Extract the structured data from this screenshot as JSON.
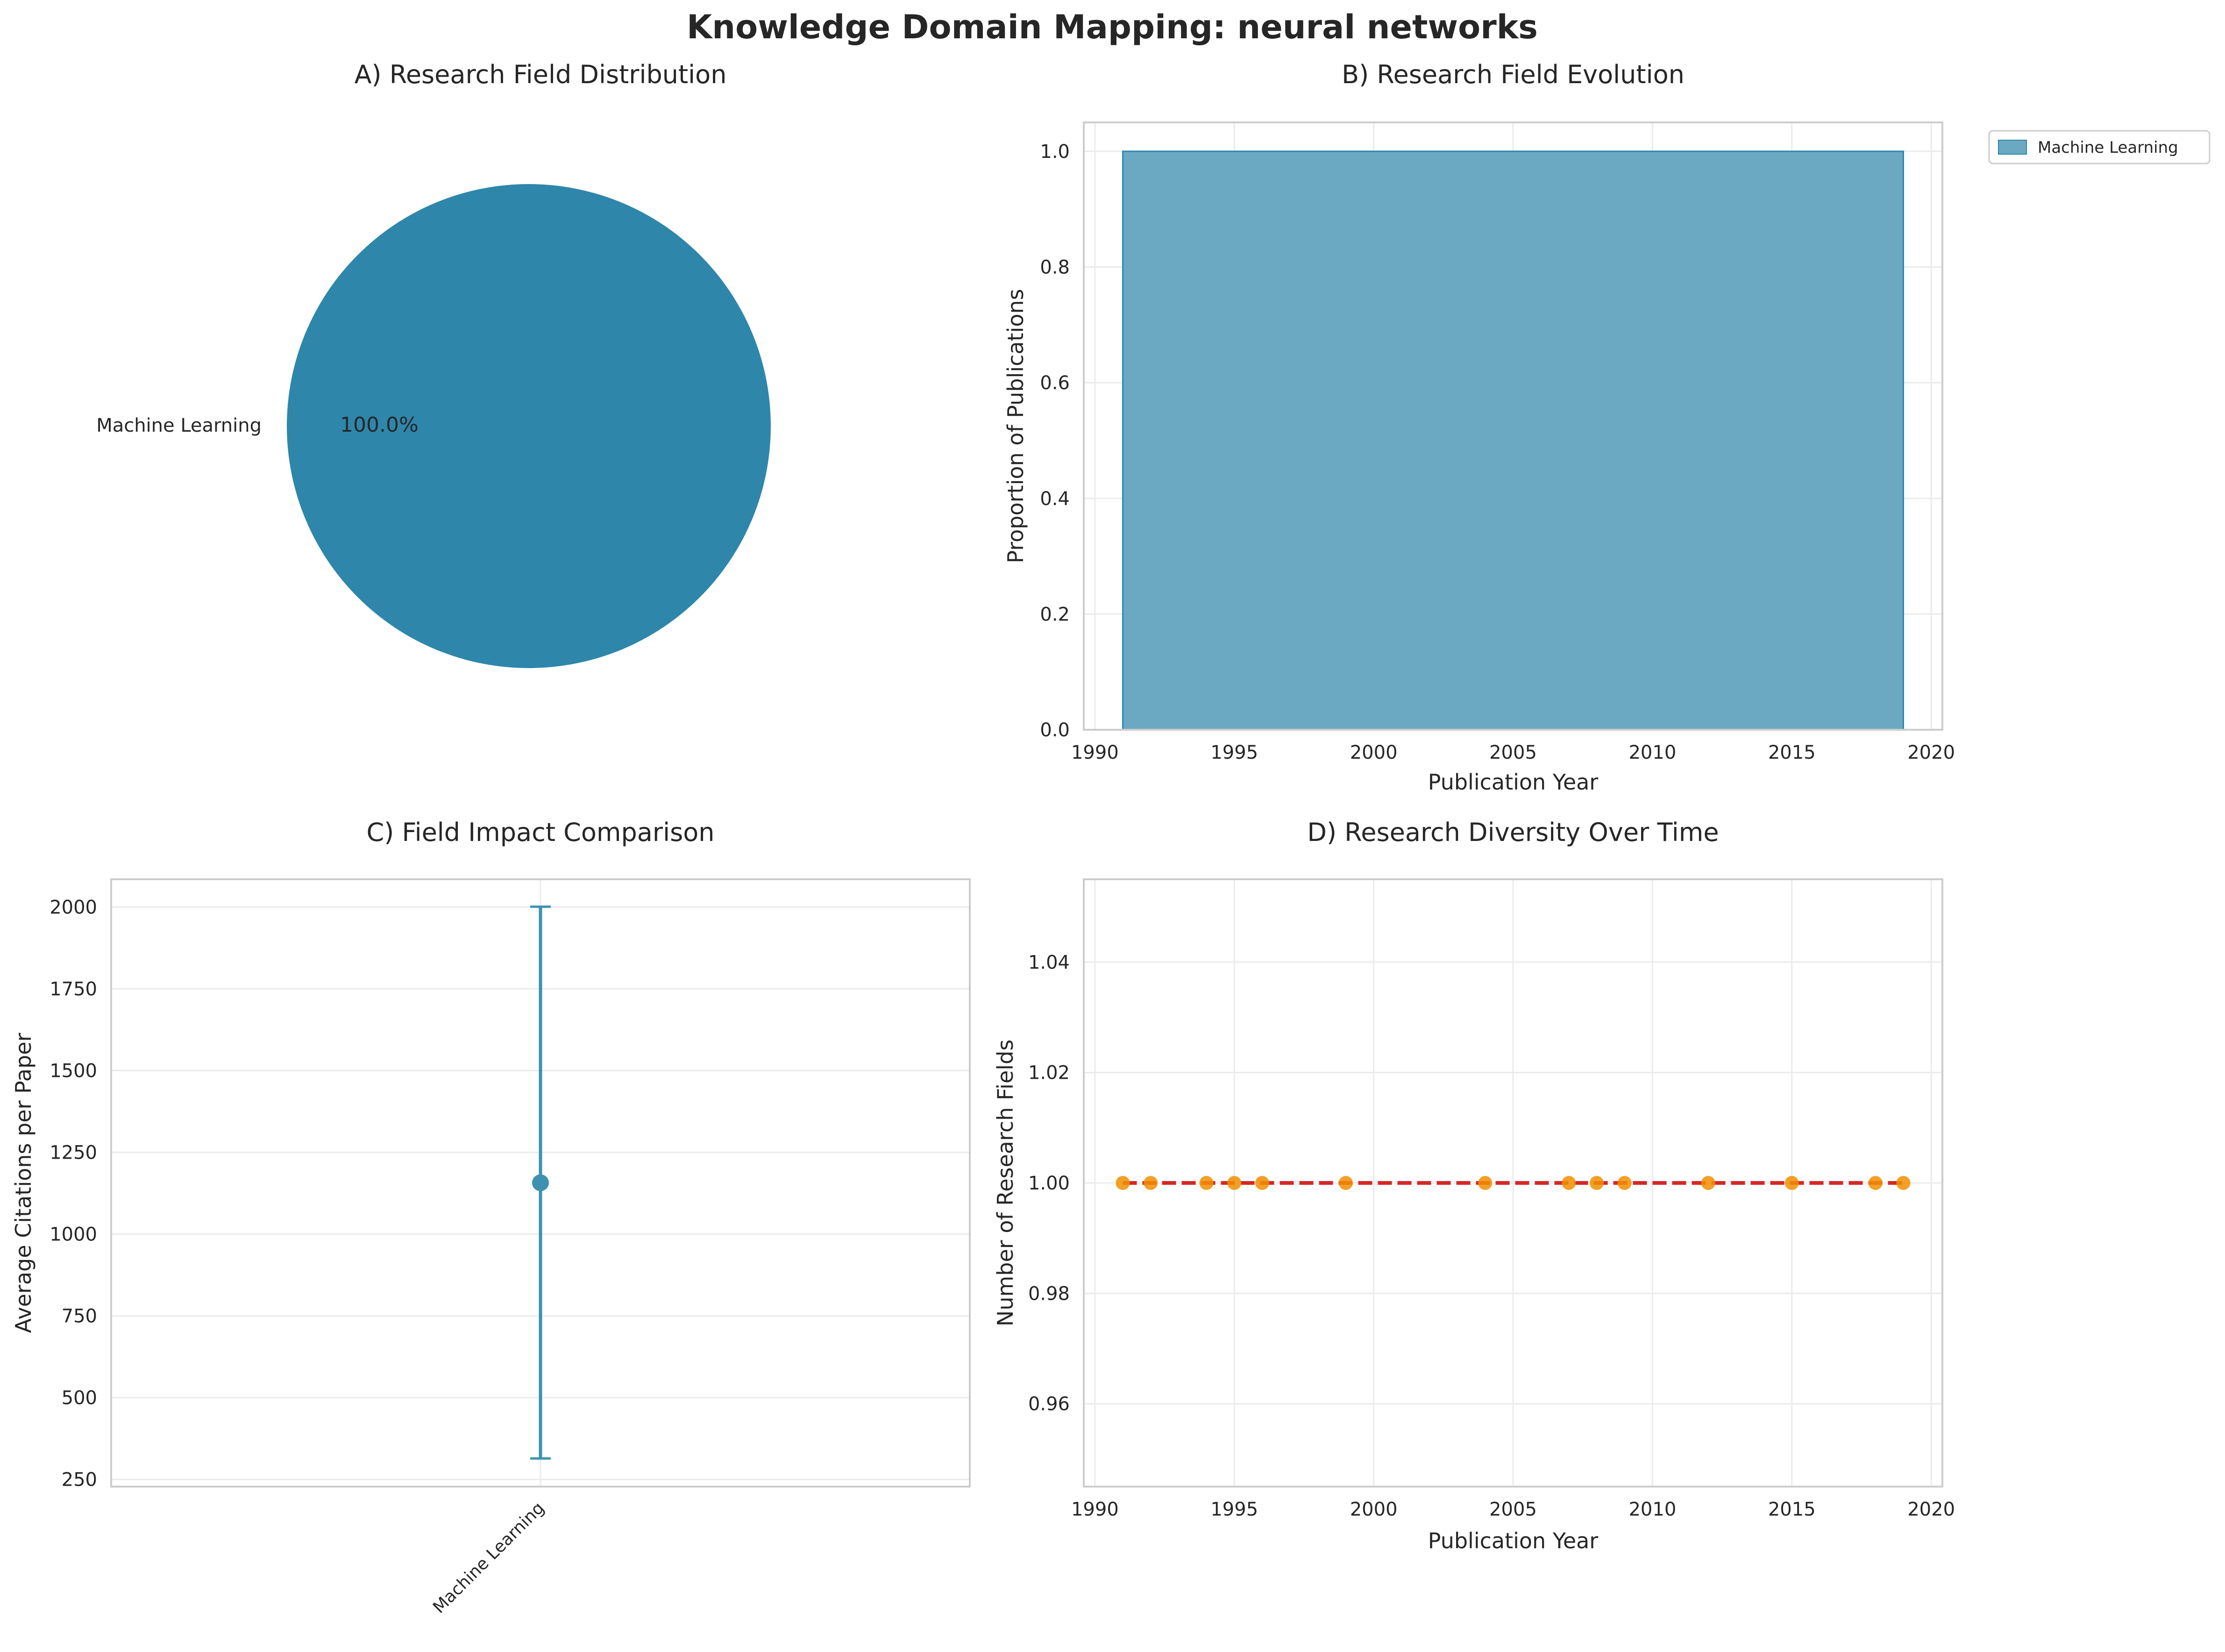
{
  "figure": {
    "title": "Knowledge Domain Mapping: neural networks"
  },
  "colors": {
    "accent": "#2E86AB",
    "area_fill": "#6BA9C2",
    "diversity_line": "#D62728",
    "diversity_marker": "#F18F01",
    "text": "#262626",
    "spine": "#CCCCCC",
    "grid": "#EBEBEB"
  },
  "chart_data": [
    {
      "type": "pie",
      "title": "A) Research Field Distribution",
      "labels": [
        "Machine Learning"
      ],
      "values": [
        100.0
      ],
      "pct_labels": [
        "100.0%"
      ]
    },
    {
      "type": "area",
      "title": "B) Research Field Evolution",
      "xlabel": "Publication Year",
      "ylabel": "Proportion of Publications",
      "xlim": [
        1989.6,
        2020.4
      ],
      "ylim": [
        0,
        1.05
      ],
      "xticks": [
        1990,
        1995,
        2000,
        2005,
        2010,
        2015,
        2020
      ],
      "yticks": [
        0.0,
        0.2,
        0.4,
        0.6,
        0.8,
        1.0
      ],
      "ytick_labels": [
        "0.0",
        "0.2",
        "0.4",
        "0.6",
        "0.8",
        "1.0"
      ],
      "x": [
        1991,
        2019
      ],
      "series": [
        {
          "name": "Machine Learning",
          "values": [
            1.0,
            1.0
          ]
        }
      ],
      "legend": "outside-top-right",
      "grid": true
    },
    {
      "type": "scatter",
      "title": "C) Field Impact Comparison",
      "xlabel": "",
      "ylabel": "Average Citations per Paper",
      "categories": [
        "Machine Learning"
      ],
      "values": [
        1157
      ],
      "error_low": [
        314
      ],
      "error_high": [
        2001
      ],
      "ylim": [
        228,
        2085
      ],
      "yticks": [
        250,
        500,
        750,
        1000,
        1250,
        1500,
        1750,
        2000
      ],
      "ytick_labels": [
        "250",
        "500",
        "750",
        "1000",
        "1250",
        "1500",
        "1750",
        "2000"
      ],
      "grid": true
    },
    {
      "type": "line",
      "title": "D) Research Diversity Over Time",
      "xlabel": "Publication Year",
      "ylabel": "Number of Research Fields",
      "xlim": [
        1989.6,
        2020.4
      ],
      "ylim": [
        0.945,
        1.055
      ],
      "xticks": [
        1990,
        1995,
        2000,
        2005,
        2010,
        2015,
        2020
      ],
      "yticks": [
        0.96,
        0.98,
        1.0,
        1.02,
        1.04
      ],
      "ytick_labels": [
        "0.96",
        "0.98",
        "1.00",
        "1.02",
        "1.04"
      ],
      "x": [
        1991,
        1992,
        1994,
        1995,
        1996,
        1999,
        2004,
        2007,
        2008,
        2009,
        2012,
        2015,
        2018,
        2019
      ],
      "values": [
        1,
        1,
        1,
        1,
        1,
        1,
        1,
        1,
        1,
        1,
        1,
        1,
        1,
        1
      ],
      "grid": true
    }
  ]
}
